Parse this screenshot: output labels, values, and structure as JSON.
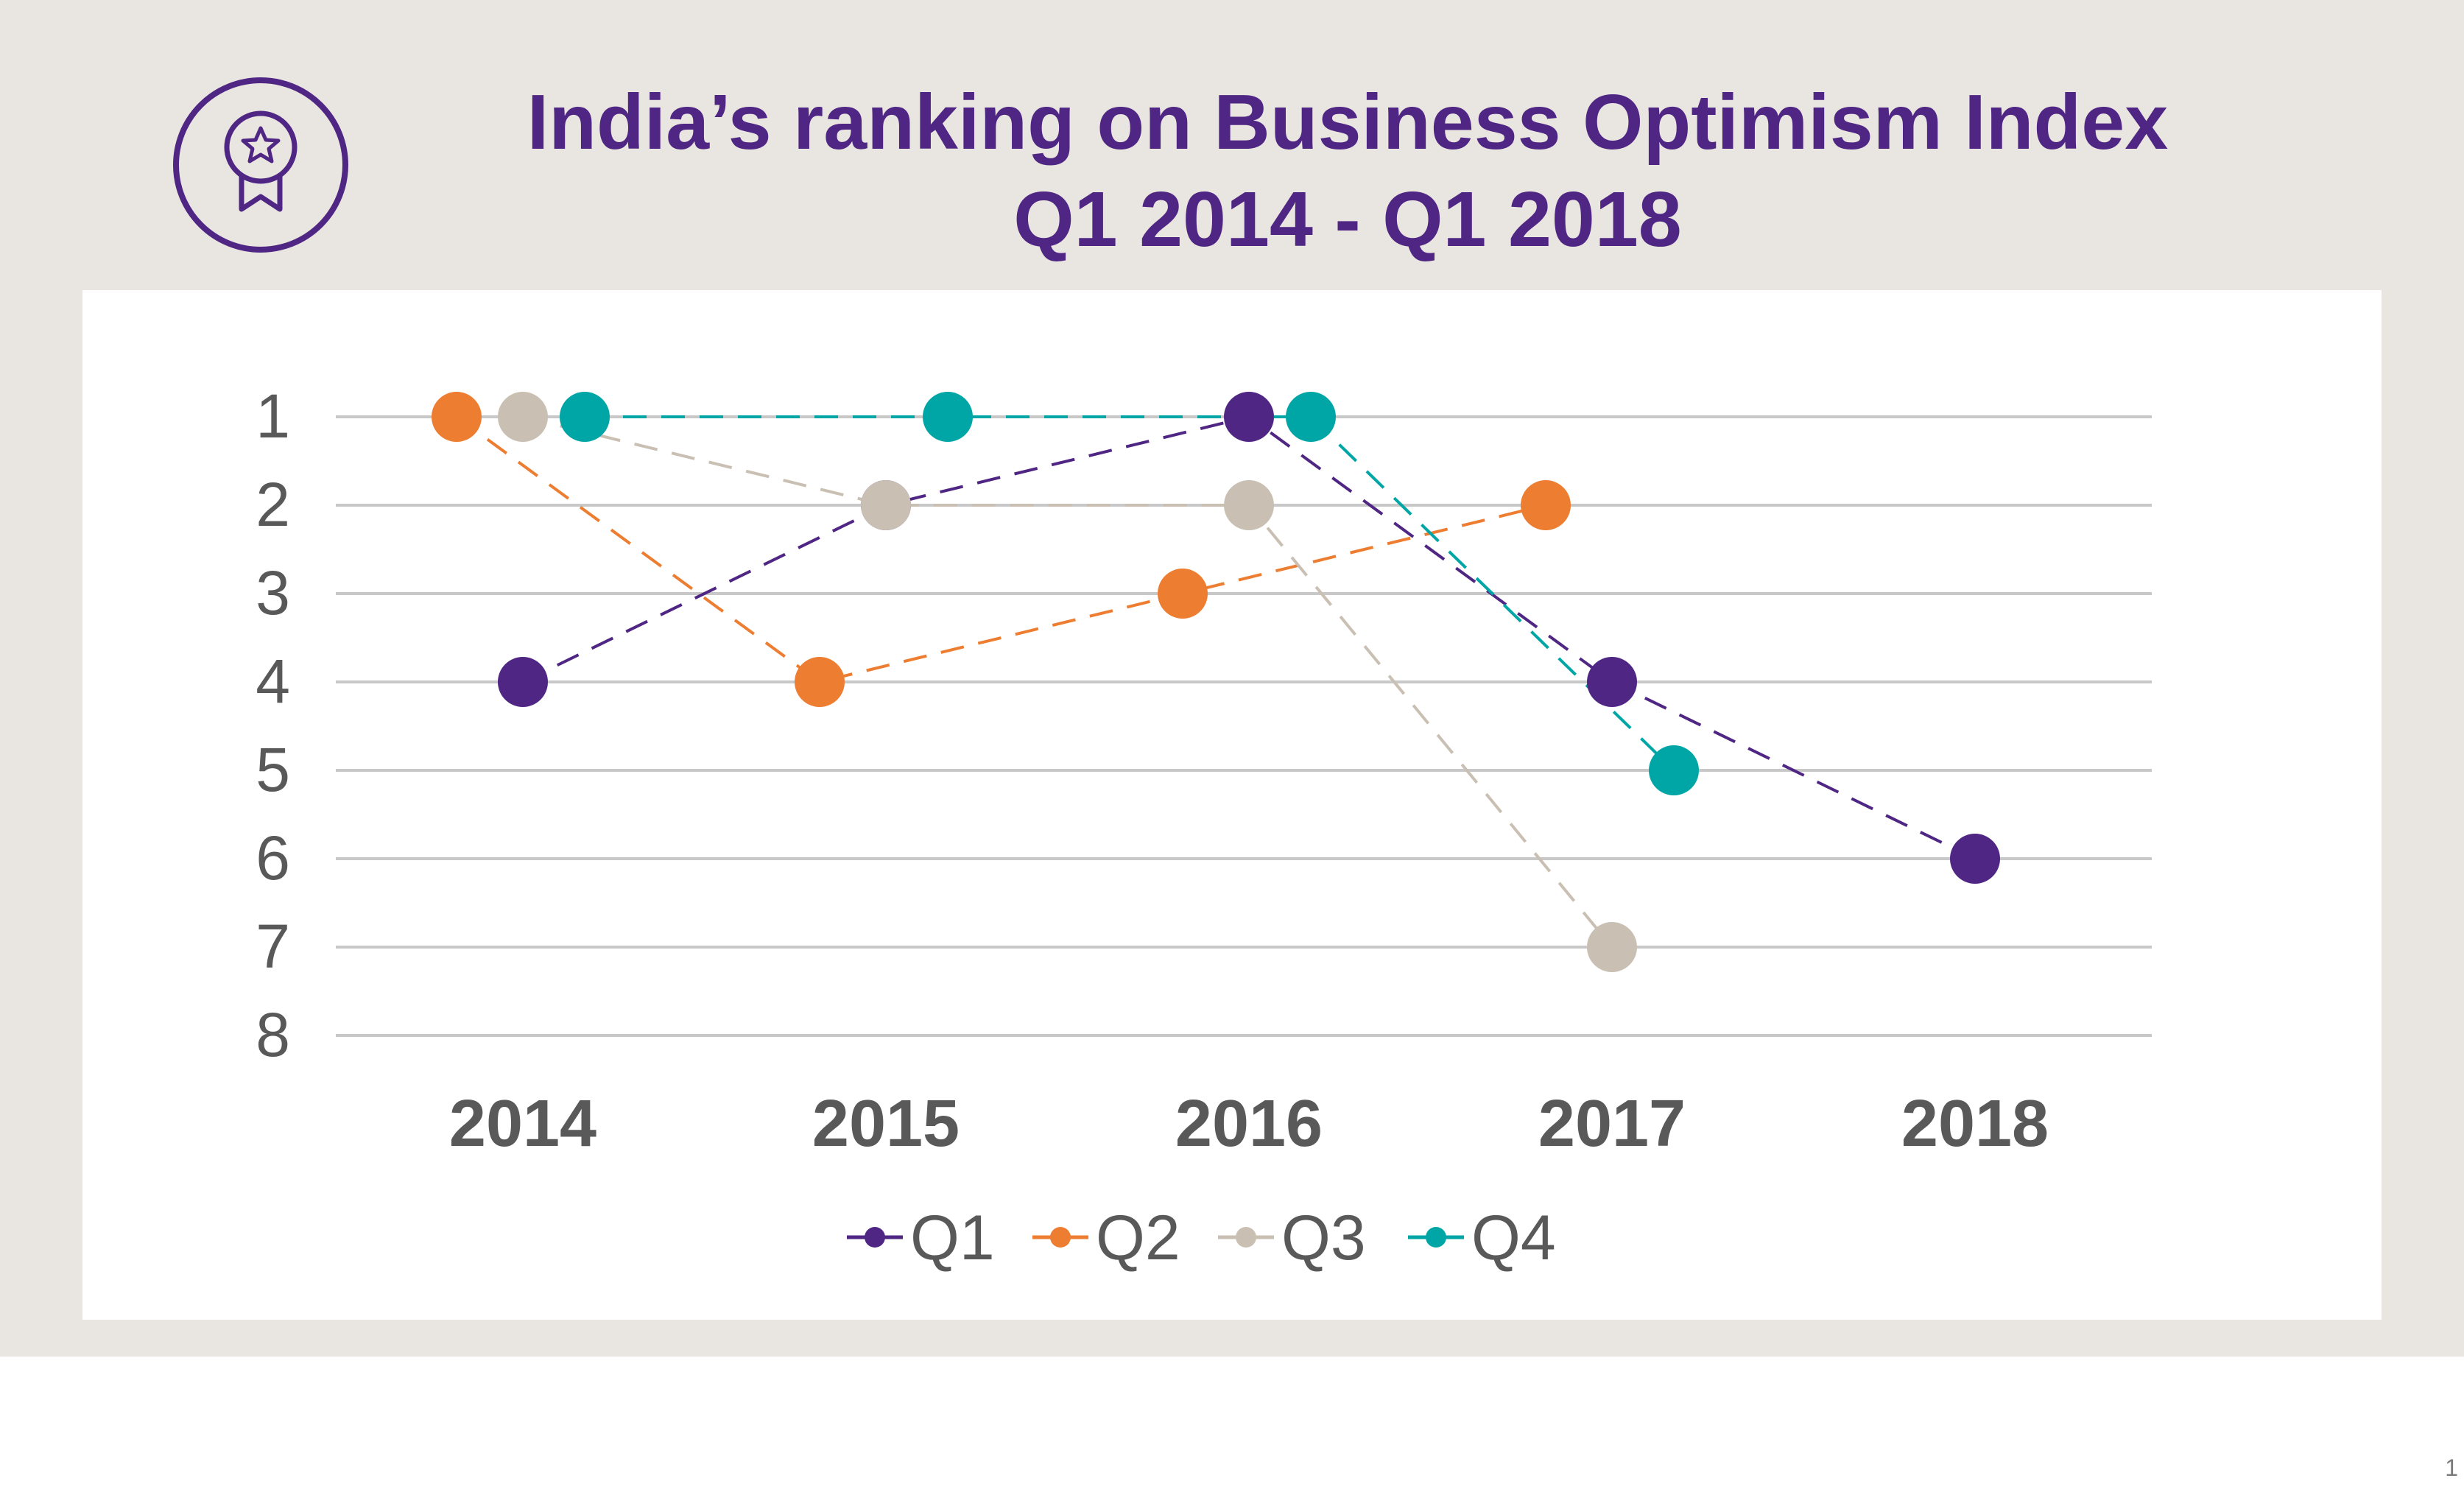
{
  "header": {
    "title_line1": "India’s ranking on Business Optimism Index",
    "title_line2": "Q1 2014 - Q1 2018",
    "icon": "award-badge-icon"
  },
  "page_number": "1",
  "colors": {
    "banner": "#e9e5e0",
    "title": "#4f2683",
    "Q1": "#4f2683",
    "Q2": "#ed7d31",
    "Q3": "#c9c0b3",
    "Q4": "#00a6a6"
  },
  "chart_data": {
    "type": "line",
    "x": [
      "2014",
      "2015",
      "2016",
      "2017",
      "2018"
    ],
    "y_ticks": [
      "1",
      "2",
      "3",
      "4",
      "5",
      "6",
      "7",
      "8"
    ],
    "ylim": [
      1,
      8
    ],
    "y_reversed": true,
    "line_style": "dashed",
    "grid": true,
    "legend_position": "bottom",
    "series": [
      {
        "name": "Q1",
        "values": [
          4,
          2,
          1,
          4,
          6
        ]
      },
      {
        "name": "Q2",
        "values": [
          1,
          4,
          3,
          2,
          null
        ]
      },
      {
        "name": "Q3",
        "values": [
          1,
          2,
          2,
          7,
          null
        ]
      },
      {
        "name": "Q4",
        "values": [
          1,
          1,
          1,
          5,
          null
        ]
      }
    ]
  }
}
